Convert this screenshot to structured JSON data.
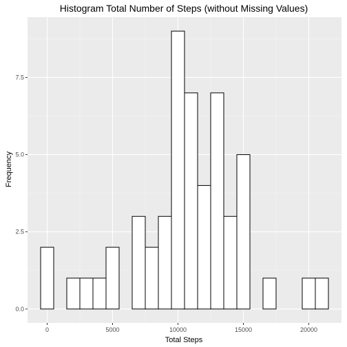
{
  "chart_data": {
    "type": "bar",
    "title": "Histogram Total Number of Steps (without Missing Values)",
    "xlabel": "Total Steps",
    "ylabel": "Frequency",
    "bin_width": 1000,
    "bins": [
      {
        "x": 0,
        "count": 2
      },
      {
        "x": 2000,
        "count": 1
      },
      {
        "x": 3000,
        "count": 1
      },
      {
        "x": 4000,
        "count": 1
      },
      {
        "x": 5000,
        "count": 2
      },
      {
        "x": 7000,
        "count": 3
      },
      {
        "x": 8000,
        "count": 2
      },
      {
        "x": 9000,
        "count": 3
      },
      {
        "x": 10000,
        "count": 9
      },
      {
        "x": 11000,
        "count": 7
      },
      {
        "x": 12000,
        "count": 4
      },
      {
        "x": 13000,
        "count": 7
      },
      {
        "x": 14000,
        "count": 3
      },
      {
        "x": 15000,
        "count": 5
      },
      {
        "x": 17000,
        "count": 1
      },
      {
        "x": 20000,
        "count": 1
      },
      {
        "x": 21000,
        "count": 1
      }
    ],
    "xlim": [
      -1500,
      22500
    ],
    "ylim": [
      -0.45,
      9.45
    ],
    "x_ticks": [
      0,
      5000,
      10000,
      15000,
      20000
    ],
    "x_tick_labels": [
      "0",
      "5000",
      "10000",
      "15000",
      "20000"
    ],
    "x_minor_ticks": [
      2500,
      7500,
      12500,
      17500
    ],
    "y_ticks": [
      0,
      2.5,
      5,
      7.5
    ],
    "y_tick_labels": [
      "0.0",
      "2.5",
      "5.0",
      "7.5"
    ],
    "y_minor_ticks": [
      1.25,
      3.75,
      6.25,
      8.75
    ],
    "grid": true,
    "colors": {
      "panel_background": "#ebebeb",
      "grid_major": "#ffffff",
      "grid_minor": "#f5f5f5",
      "bar_fill": "#ffffff",
      "bar_outline": "#000000",
      "tick": "#333333",
      "tick_label": "#4d4d4d"
    }
  }
}
